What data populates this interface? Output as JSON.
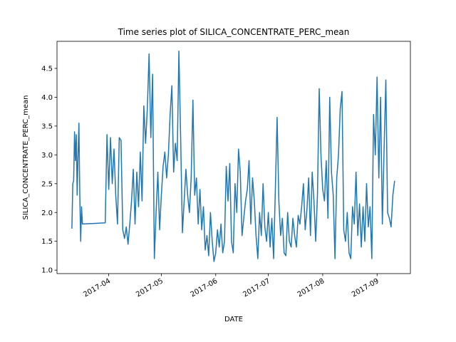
{
  "chart_data": {
    "type": "line",
    "title": "Time series plot of SILICA_CONCENTRATE_PERC_mean",
    "xlabel": "DATE",
    "ylabel": "SILICA_CONCENTRATE_PERC_mean",
    "xlim": [
      60.5,
      262
    ],
    "xticks": [
      {
        "value": 90,
        "label": "2017-04"
      },
      {
        "value": 120,
        "label": "2017-05"
      },
      {
        "value": 151,
        "label": "2017-06"
      },
      {
        "value": 181,
        "label": "2017-07"
      },
      {
        "value": 212,
        "label": "2017-08"
      },
      {
        "value": 243,
        "label": "2017-09"
      }
    ],
    "ylim": [
      0.94,
      4.97
    ],
    "yticks": [
      {
        "value": 1,
        "label": "1.0"
      },
      {
        "value": 1.5,
        "label": "1.5"
      },
      {
        "value": 2,
        "label": "2.0"
      },
      {
        "value": 2.5,
        "label": "2.5"
      },
      {
        "value": 3,
        "label": "3.0"
      },
      {
        "value": 3.5,
        "label": "3.5"
      },
      {
        "value": 4,
        "label": "4.0"
      },
      {
        "value": 4.5,
        "label": "4.5"
      }
    ],
    "grid": false,
    "color": "#1f77b4",
    "x": [
      69,
      69.5,
      70,
      70.5,
      71,
      71.5,
      72,
      72.5,
      73,
      73.5,
      74,
      74.5,
      75,
      88,
      89,
      90,
      91,
      92,
      93,
      94,
      95,
      96,
      97,
      98,
      99,
      100,
      101,
      102,
      103,
      104,
      105,
      106,
      107,
      108,
      109,
      110,
      111,
      112,
      113,
      114,
      115,
      116,
      117,
      118,
      119,
      120,
      121,
      122,
      123,
      124,
      125,
      126,
      127,
      128,
      129,
      130,
      131,
      132,
      133,
      134,
      135,
      136,
      137,
      138,
      139,
      140,
      141,
      142,
      143,
      144,
      145,
      146,
      147,
      148,
      149,
      150,
      151,
      152,
      153,
      154,
      155,
      156,
      157,
      158,
      159,
      160,
      161,
      162,
      163,
      164,
      165,
      166,
      167,
      168,
      169,
      170,
      171,
      172,
      173,
      174,
      175,
      176,
      177,
      178,
      179,
      180,
      181,
      182,
      183,
      184,
      185,
      186,
      187,
      188,
      189,
      190,
      191,
      192,
      193,
      194,
      195,
      196,
      197,
      198,
      199,
      200,
      201,
      202,
      203,
      204,
      205,
      206,
      207,
      208,
      209,
      210,
      211,
      212,
      213,
      214,
      215,
      216,
      217,
      218,
      219,
      220,
      221,
      222,
      223,
      224,
      225,
      226,
      227,
      228,
      229,
      230,
      231,
      232,
      233,
      234,
      235,
      236,
      237,
      238,
      239,
      240,
      241,
      242,
      243,
      244,
      245,
      246,
      247,
      248,
      249,
      250,
      251,
      252,
      253
    ],
    "values": [
      1.72,
      2.5,
      2.55,
      3.4,
      2.9,
      3.35,
      2.3,
      3.0,
      3.55,
      2.3,
      1.5,
      2.1,
      1.8,
      1.82,
      3.35,
      2.4,
      3.3,
      2.5,
      3.1,
      2.3,
      1.8,
      3.3,
      3.25,
      1.7,
      1.55,
      1.75,
      1.45,
      1.8,
      2.2,
      2.75,
      1.8,
      2.7,
      2.1,
      3.05,
      2.2,
      3.85,
      3.2,
      3.8,
      4.75,
      3.3,
      4.4,
      1.2,
      2.0,
      2.7,
      1.7,
      2.3,
      2.8,
      3.05,
      2.6,
      3.0,
      3.7,
      4.2,
      2.7,
      3.2,
      2.9,
      4.8,
      3.3,
      1.65,
      2.2,
      2.75,
      2.3,
      2.0,
      2.6,
      3.95,
      2.3,
      2.6,
      1.8,
      2.4,
      1.7,
      2.1,
      1.35,
      1.6,
      1.25,
      2.0,
      1.5,
      1.15,
      1.3,
      1.7,
      1.4,
      1.8,
      1.3,
      1.5,
      2.8,
      2.2,
      2.85,
      1.5,
      1.3,
      2.5,
      2.0,
      3.1,
      2.7,
      1.6,
      1.9,
      2.2,
      2.4,
      2.9,
      1.8,
      2.6,
      2.2,
      1.6,
      1.2,
      2.0,
      1.6,
      2.5,
      1.75,
      1.5,
      2.0,
      1.4,
      1.9,
      1.2,
      2.4,
      3.65,
      2.2,
      1.6,
      1.9,
      1.3,
      1.25,
      2.0,
      1.5,
      1.4,
      1.9,
      1.6,
      1.4,
      1.95,
      1.8,
      2.1,
      2.5,
      1.7,
      2.05,
      2.6,
      1.6,
      2.7,
      2.2,
      1.5,
      2.3,
      4.15,
      3.0,
      2.4,
      2.2,
      2.9,
      1.9,
      4.0,
      2.7,
      2.3,
      1.2,
      2.6,
      3.0,
      3.8,
      4.1,
      1.7,
      1.5,
      2.0,
      1.3,
      1.2,
      2.1,
      1.8,
      2.7,
      1.6,
      2.15,
      1.4,
      2.1,
      1.5,
      2.5,
      1.75,
      2.1,
      1.2,
      3.7,
      3.0,
      4.35,
      2.6,
      4.0,
      1.8,
      3.1,
      4.3,
      2.0,
      1.9,
      1.75,
      2.3,
      2.55
    ]
  }
}
